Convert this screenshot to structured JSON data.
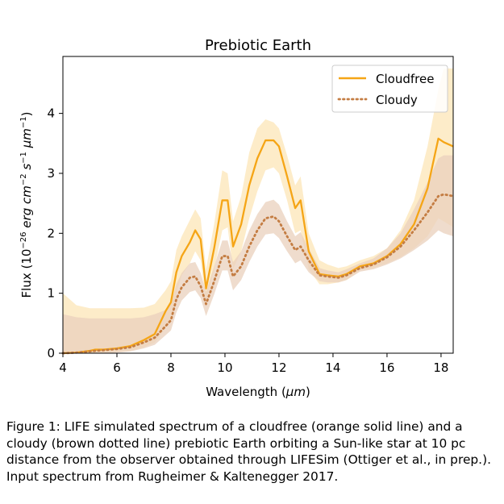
{
  "chart_data": {
    "type": "line",
    "title": "Prebiotic Earth",
    "xlabel": "Wavelength ($\\mu m$)",
    "ylabel": "Flux ($10^{-26}$ $erg$ $cm^{-2}$ $s^{-1}$ $\\mu m^{-1}$)",
    "xlim": [
      4,
      18.45
    ],
    "ylim": [
      0,
      4.95
    ],
    "xticks": [
      4,
      6,
      8,
      10,
      12,
      14,
      16,
      18
    ],
    "yticks": [
      0,
      1,
      2,
      3,
      4
    ],
    "grid": false,
    "legend_position": "top-right",
    "colors": {
      "cloudfree": "#f5a516",
      "cloudy": "#c47d43",
      "cloudfree_band": "#fde9c0",
      "cloudy_band": "#e9d0bc"
    },
    "x": [
      4.0,
      4.5,
      5.0,
      5.2,
      5.5,
      6.0,
      6.5,
      7.0,
      7.4,
      7.8,
      8.0,
      8.2,
      8.4,
      8.7,
      8.9,
      9.1,
      9.3,
      9.6,
      9.9,
      10.1,
      10.3,
      10.6,
      10.9,
      11.2,
      11.5,
      11.8,
      12.0,
      12.3,
      12.6,
      12.8,
      13.1,
      13.5,
      13.8,
      14.2,
      14.5,
      15.0,
      15.5,
      16.0,
      16.5,
      17.0,
      17.5,
      17.9,
      18.1,
      18.45
    ],
    "series": [
      {
        "name": "Cloudfree",
        "style": "solid",
        "values": [
          0.0,
          0.01,
          0.04,
          0.06,
          0.06,
          0.08,
          0.12,
          0.22,
          0.32,
          0.7,
          0.85,
          1.35,
          1.62,
          1.85,
          2.05,
          1.9,
          1.08,
          1.75,
          2.55,
          2.55,
          1.78,
          2.15,
          2.8,
          3.25,
          3.55,
          3.55,
          3.45,
          2.95,
          2.42,
          2.55,
          1.7,
          1.32,
          1.3,
          1.28,
          1.32,
          1.45,
          1.5,
          1.62,
          1.82,
          2.15,
          2.75,
          3.58,
          3.52,
          3.45
        ],
        "lower": [
          0.0,
          0.0,
          0.0,
          0.0,
          0.01,
          0.02,
          0.04,
          0.1,
          0.18,
          0.42,
          0.55,
          1.0,
          1.3,
          1.5,
          1.7,
          1.55,
          0.85,
          1.4,
          2.05,
          2.1,
          1.4,
          1.7,
          2.25,
          2.7,
          3.05,
          3.1,
          3.0,
          2.55,
          2.0,
          2.05,
          1.4,
          1.15,
          1.15,
          1.18,
          1.22,
          1.38,
          1.42,
          1.5,
          1.6,
          1.75,
          1.95,
          2.25,
          2.2,
          2.1
        ],
        "upper": [
          1.0,
          0.8,
          0.75,
          0.75,
          0.75,
          0.75,
          0.75,
          0.76,
          0.82,
          1.05,
          1.2,
          1.72,
          1.95,
          2.22,
          2.4,
          2.25,
          1.4,
          2.15,
          3.05,
          3.0,
          2.2,
          2.62,
          3.35,
          3.75,
          3.9,
          3.85,
          3.75,
          3.3,
          2.8,
          2.95,
          2.0,
          1.55,
          1.48,
          1.42,
          1.45,
          1.55,
          1.62,
          1.75,
          2.05,
          2.55,
          3.45,
          4.4,
          4.75,
          4.75
        ]
      },
      {
        "name": "Cloudy",
        "style": "dotted",
        "values": [
          0.0,
          0.01,
          0.03,
          0.04,
          0.05,
          0.07,
          0.1,
          0.18,
          0.26,
          0.45,
          0.55,
          0.9,
          1.1,
          1.26,
          1.28,
          1.12,
          0.82,
          1.2,
          1.62,
          1.62,
          1.28,
          1.45,
          1.78,
          2.05,
          2.25,
          2.28,
          2.2,
          1.95,
          1.72,
          1.78,
          1.55,
          1.3,
          1.28,
          1.26,
          1.3,
          1.42,
          1.48,
          1.6,
          1.78,
          2.05,
          2.35,
          2.62,
          2.65,
          2.62
        ],
        "lower": [
          0.0,
          0.0,
          0.0,
          0.0,
          0.0,
          0.01,
          0.03,
          0.08,
          0.14,
          0.3,
          0.38,
          0.68,
          0.88,
          1.02,
          1.05,
          0.92,
          0.62,
          0.98,
          1.38,
          1.38,
          1.05,
          1.22,
          1.52,
          1.78,
          1.98,
          2.0,
          1.92,
          1.7,
          1.5,
          1.55,
          1.35,
          1.2,
          1.18,
          1.18,
          1.22,
          1.36,
          1.4,
          1.48,
          1.58,
          1.72,
          1.88,
          2.05,
          2.0,
          1.95
        ],
        "upper": [
          0.65,
          0.6,
          0.58,
          0.58,
          0.58,
          0.58,
          0.58,
          0.6,
          0.65,
          0.72,
          0.82,
          1.15,
          1.34,
          1.5,
          1.52,
          1.34,
          1.02,
          1.45,
          1.88,
          1.88,
          1.52,
          1.7,
          2.05,
          2.32,
          2.52,
          2.56,
          2.48,
          2.2,
          1.95,
          2.02,
          1.75,
          1.42,
          1.38,
          1.35,
          1.4,
          1.5,
          1.58,
          1.75,
          2.0,
          2.4,
          2.85,
          3.25,
          3.3,
          3.3
        ]
      }
    ]
  },
  "caption": "Figure 1: LIFE simulated spectrum of a cloudfree (orange solid line) and a cloudy (brown dotted line) prebiotic Earth orbiting a Sun-like star at 10 pc distance from the observer obtained through LIFESim (Ottiger et al., in prep.). Input spectrum from Rugheimer & Kaltenegger 2017."
}
